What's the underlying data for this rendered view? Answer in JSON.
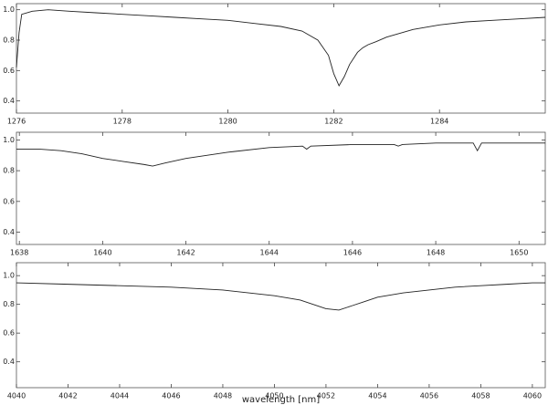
{
  "chart_data": [
    {
      "type": "line",
      "x": [
        1276,
        1276.05,
        1276.1,
        1276.3,
        1276.6,
        1277,
        1277.5,
        1278,
        1278.5,
        1279,
        1279.5,
        1280,
        1280.5,
        1281,
        1281.4,
        1281.7,
        1281.9,
        1282,
        1282.1,
        1282.2,
        1282.3,
        1282.45,
        1282.55,
        1282.65,
        1282.8,
        1283,
        1283.5,
        1284,
        1284.5,
        1285,
        1285.5,
        1286
      ],
      "series": [
        {
          "color": "#222222",
          "values": [
            0.62,
            0.85,
            0.97,
            0.99,
            1.0,
            0.99,
            0.98,
            0.97,
            0.96,
            0.95,
            0.94,
            0.93,
            0.91,
            0.89,
            0.86,
            0.8,
            0.7,
            0.58,
            0.5,
            0.56,
            0.64,
            0.72,
            0.75,
            0.77,
            0.79,
            0.82,
            0.87,
            0.9,
            0.92,
            0.93,
            0.94,
            0.95
          ]
        }
      ],
      "xlim": [
        1276,
        1286
      ],
      "ylim": [
        0.32,
        1.04
      ],
      "xticks": [
        1276,
        1278,
        1280,
        1282,
        1284
      ],
      "yticks": [
        0.4,
        0.6,
        0.8,
        {
          "value": 1,
          "label": "1.0"
        }
      ]
    },
    {
      "type": "line",
      "x": [
        1637.93,
        1638.5,
        1639,
        1639.5,
        1640,
        1640.5,
        1641,
        1641.2,
        1641.5,
        1642,
        1642.5,
        1643,
        1644,
        1644.8,
        1644.9,
        1645,
        1646,
        1647,
        1647.1,
        1647.2,
        1648,
        1648.9,
        1649,
        1649.1,
        1650,
        1650.63
      ],
      "series": [
        {
          "color": "#222222",
          "values": [
            0.94,
            0.94,
            0.93,
            0.91,
            0.88,
            0.86,
            0.84,
            0.83,
            0.85,
            0.88,
            0.9,
            0.92,
            0.95,
            0.96,
            0.94,
            0.96,
            0.97,
            0.97,
            0.96,
            0.97,
            0.98,
            0.98,
            0.93,
            0.98,
            0.98,
            0.98
          ]
        }
      ],
      "xlim": [
        1637.93,
        1650.63
      ],
      "ylim": [
        0.32,
        1.05
      ],
      "xticks": [
        1638,
        1640,
        1642,
        1644,
        1646,
        1648,
        1650
      ],
      "yticks": [
        0.4,
        0.6,
        0.8,
        {
          "value": 1,
          "label": "1.0"
        }
      ]
    },
    {
      "type": "line",
      "x": [
        4040,
        4042,
        4044,
        4046,
        4048,
        4049,
        4050,
        4051,
        4051.5,
        4052,
        4052.5,
        4053,
        4053.5,
        4054,
        4055,
        4056,
        4057,
        4058,
        4059,
        4060,
        4060.5
      ],
      "series": [
        {
          "color": "#222222",
          "values": [
            0.95,
            0.94,
            0.93,
            0.92,
            0.9,
            0.88,
            0.86,
            0.83,
            0.8,
            0.77,
            0.76,
            0.79,
            0.82,
            0.85,
            0.88,
            0.9,
            0.92,
            0.93,
            0.94,
            0.95,
            0.95
          ]
        }
      ],
      "xlim": [
        4040,
        4060.5
      ],
      "ylim": [
        0.22,
        1.09
      ],
      "xticks": [
        4040,
        4042,
        4044,
        4046,
        4048,
        4050,
        4052,
        4054,
        4056,
        4058,
        4060
      ],
      "yticks": [
        0.4,
        0.6,
        0.8,
        {
          "value": 1,
          "label": "1.0"
        }
      ],
      "xlabel": "wavelength [nm]"
    }
  ]
}
